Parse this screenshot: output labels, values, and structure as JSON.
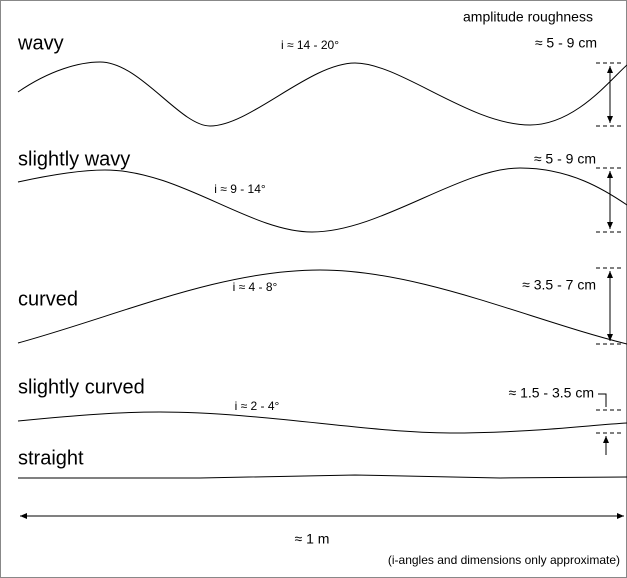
{
  "header": "amplitude roughness",
  "profiles": [
    {
      "label": "wavy",
      "angle": "i ≈ 14 - 20°",
      "amplitude": "≈ 5 - 9 cm"
    },
    {
      "label": "slightly wavy",
      "angle": "i ≈ 9 - 14°",
      "amplitude": "≈ 5 - 9 cm"
    },
    {
      "label": "curved",
      "angle": "i ≈ 4 - 8°",
      "amplitude": "≈ 3.5 - 7 cm"
    },
    {
      "label": "slightly curved",
      "angle": "i ≈ 2 - 4°",
      "amplitude": "≈ 1.5 - 3.5 cm"
    },
    {
      "label": "straight"
    }
  ],
  "scale": "≈ 1 m",
  "note": "(i-angles and dimensions only approximate)"
}
